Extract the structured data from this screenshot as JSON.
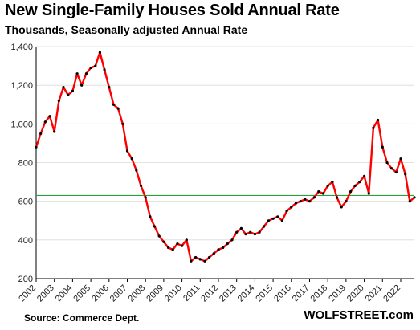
{
  "title": "New Single-Family Houses Sold Annual Rate",
  "subtitle": "Thousands, Seasonally adjusted Annual Rate",
  "footer": {
    "source": "Source: Commerce Dept.",
    "brand": "WOLFSTREET.com"
  },
  "colors": {
    "line": "#ff0000",
    "markers": "#000000",
    "reference_line": "#2e9e3e",
    "grid": "#d9d9d9"
  },
  "chart_data": {
    "type": "line",
    "title": "New Single-Family Houses Sold Annual Rate",
    "subtitle": "Thousands, Seasonally adjusted Annual Rate",
    "xlabel": "",
    "ylabel": "",
    "ylim": [
      200,
      1400
    ],
    "yticks": [
      200,
      400,
      600,
      800,
      1000,
      1200,
      1400
    ],
    "ytick_labels": [
      "200",
      "400",
      "600",
      "800",
      "1,000",
      "1,200",
      "1,400"
    ],
    "xlim": [
      2002,
      2022.75
    ],
    "xticks": [
      2002,
      2003,
      2004,
      2005,
      2006,
      2007,
      2008,
      2009,
      2010,
      2011,
      2012,
      2013,
      2014,
      2015,
      2016,
      2017,
      2018,
      2019,
      2020,
      2021,
      2022
    ],
    "xtick_labels": [
      "2002",
      "2003",
      "2004",
      "2005",
      "2006",
      "2007",
      "2008",
      "2009",
      "2010",
      "2011",
      "2012",
      "2013",
      "2014",
      "2015",
      "2016",
      "2017",
      "2018",
      "2019",
      "2020",
      "2021",
      "2022"
    ],
    "grid": "horizontal",
    "reference_line": 630,
    "series": [
      {
        "name": "",
        "x": [
          2002.0,
          2002.25,
          2002.5,
          2002.75,
          2003.0,
          2003.25,
          2003.5,
          2003.75,
          2004.0,
          2004.25,
          2004.5,
          2004.75,
          2005.0,
          2005.25,
          2005.5,
          2005.75,
          2006.0,
          2006.25,
          2006.5,
          2006.75,
          2007.0,
          2007.25,
          2007.5,
          2007.75,
          2008.0,
          2008.25,
          2008.5,
          2008.75,
          2009.0,
          2009.25,
          2009.5,
          2009.75,
          2010.0,
          2010.25,
          2010.5,
          2010.75,
          2011.0,
          2011.25,
          2011.5,
          2011.75,
          2012.0,
          2012.25,
          2012.5,
          2012.75,
          2013.0,
          2013.25,
          2013.5,
          2013.75,
          2014.0,
          2014.25,
          2014.5,
          2014.75,
          2015.0,
          2015.25,
          2015.5,
          2015.75,
          2016.0,
          2016.25,
          2016.5,
          2016.75,
          2017.0,
          2017.25,
          2017.5,
          2017.75,
          2018.0,
          2018.25,
          2018.5,
          2018.75,
          2019.0,
          2019.25,
          2019.5,
          2019.75,
          2020.0,
          2020.25,
          2020.5,
          2020.75,
          2021.0,
          2021.25,
          2021.5,
          2021.75,
          2022.0,
          2022.25,
          2022.5,
          2022.75
        ],
        "values": [
          880,
          950,
          1010,
          1040,
          960,
          1120,
          1190,
          1150,
          1170,
          1260,
          1200,
          1260,
          1290,
          1300,
          1370,
          1280,
          1190,
          1100,
          1080,
          1000,
          860,
          820,
          760,
          680,
          620,
          520,
          470,
          420,
          390,
          360,
          350,
          380,
          370,
          400,
          290,
          310,
          300,
          290,
          310,
          330,
          350,
          360,
          380,
          400,
          440,
          460,
          430,
          440,
          430,
          440,
          470,
          500,
          510,
          520,
          500,
          550,
          570,
          590,
          600,
          610,
          600,
          620,
          650,
          640,
          680,
          700,
          620,
          570,
          600,
          650,
          680,
          700,
          730,
          640,
          980,
          1020,
          880,
          800,
          770,
          750,
          820,
          740,
          600,
          620
        ]
      }
    ]
  }
}
